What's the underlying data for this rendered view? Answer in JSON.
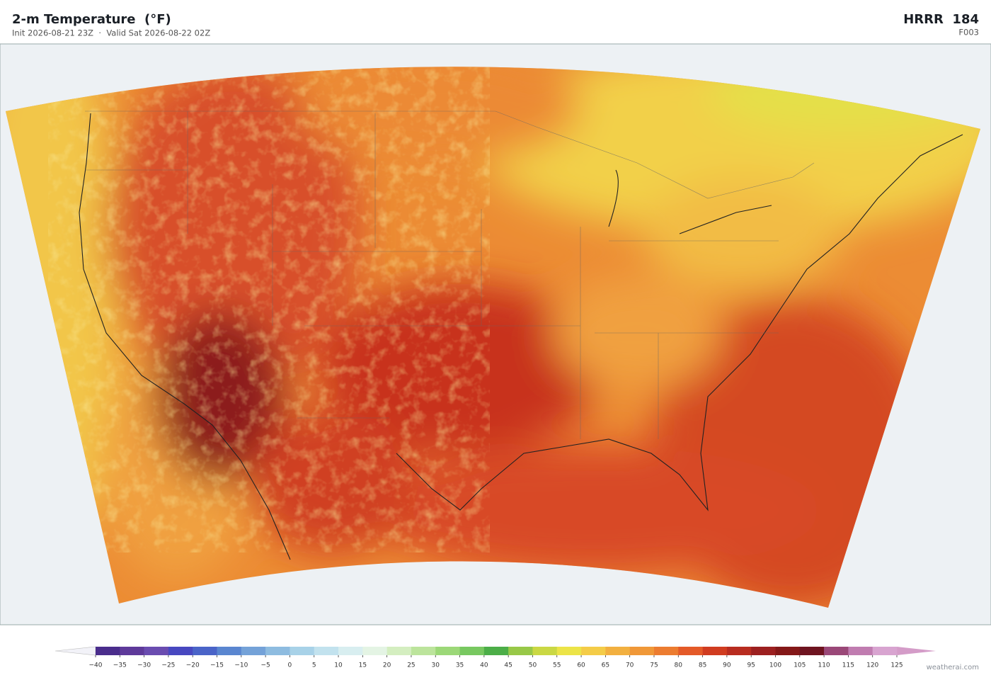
{
  "header": {
    "title": "2-m Temperature  (°F)",
    "subtitle": "Init 2026-08-21 23Z  ·  Valid Sat 2026-08-22 02Z",
    "model": "HRRR  184",
    "forecast_hour": "F003"
  },
  "colorbar": {
    "ticks": [
      {
        "value": -40,
        "label": "−40"
      },
      {
        "value": -35,
        "label": "−35"
      },
      {
        "value": -30,
        "label": "−30"
      },
      {
        "value": -25,
        "label": "−25"
      },
      {
        "value": -20,
        "label": "−20"
      },
      {
        "value": -15,
        "label": "−15"
      },
      {
        "value": -10,
        "label": "−10"
      },
      {
        "value": -5,
        "label": "−5"
      },
      0,
      5,
      10,
      15,
      20,
      25,
      30,
      35,
      40,
      45,
      50,
      55,
      60,
      65,
      70,
      75,
      80,
      85,
      90,
      95,
      100,
      105,
      110,
      115,
      120,
      125
    ],
    "colors": [
      "#4a2d8c",
      "#5e3a9a",
      "#6a4cb0",
      "#4848c0",
      "#4a64c8",
      "#5a86d0",
      "#74a2d8",
      "#8ebce0",
      "#a8d2e8",
      "#c2e2ee",
      "#d8eef0",
      "#e4f4e4",
      "#d4eec0",
      "#bce49c",
      "#9cd878",
      "#78c860",
      "#4cae48",
      "#98c848",
      "#cad844",
      "#ece448",
      "#f4cc48",
      "#f2b040",
      "#f09838",
      "#ec7c30",
      "#e45a28",
      "#d03c20",
      "#b82c20",
      "#9c2020",
      "#841818",
      "#6e1420",
      "#9a4878",
      "#c07cb0",
      "#d8a4d0"
    ],
    "under_color": "#f2f2f8",
    "over_color": "#d49cc8"
  },
  "credit": "weatherai.com"
}
